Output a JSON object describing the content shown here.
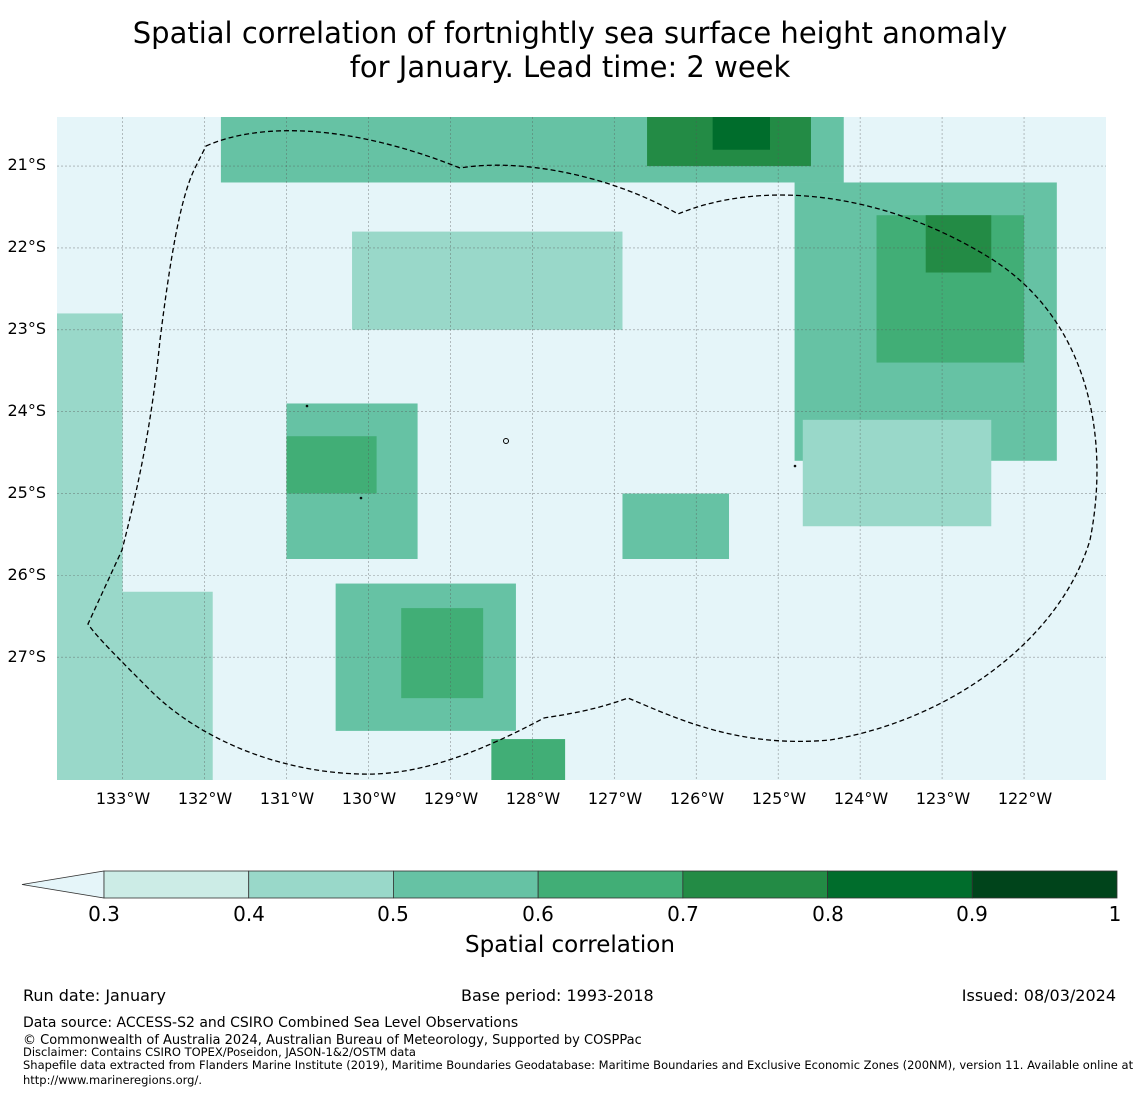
{
  "title_line1": "Spatial correlation of fortnightly sea surface height anomaly",
  "title_line2": "for January. Lead time: 2 week",
  "chart_data": {
    "type": "heatmap",
    "grid": "correlation values on a ~0.25 degree lon/lat grid",
    "lon_range": [
      -133.8,
      -121.0
    ],
    "lat_range": [
      -28.5,
      -20.4
    ],
    "lat_ticks": [
      "21°S",
      "22°S",
      "23°S",
      "24°S",
      "25°S",
      "26°S",
      "27°S"
    ],
    "lat_tick_values": [
      -21,
      -22,
      -23,
      -24,
      -25,
      -26,
      -27
    ],
    "lon_ticks": [
      "133°W",
      "132°W",
      "131°W",
      "130°W",
      "129°W",
      "128°W",
      "127°W",
      "126°W",
      "125°W",
      "124°W",
      "123°W",
      "122°W"
    ],
    "lon_tick_values": [
      -133,
      -132,
      -131,
      -130,
      -129,
      -128,
      -127,
      -126,
      -125,
      -124,
      -123,
      -122
    ],
    "regions": [
      {
        "name": "background",
        "value": 0.25
      },
      {
        "name": "west-edge",
        "value": 0.42,
        "lon": [
          -133.8,
          -133.0
        ],
        "lat": [
          -26.8,
          -22.8
        ]
      },
      {
        "name": "north-band",
        "value": 0.55,
        "lon": [
          -131.8,
          -124.2
        ],
        "lat": [
          -21.2,
          -20.4
        ]
      },
      {
        "name": "north-core",
        "value": 0.72,
        "lon": [
          -126.6,
          -124.6
        ],
        "lat": [
          -21.0,
          -20.4
        ]
      },
      {
        "name": "north-peak",
        "value": 0.84,
        "lon": [
          -125.8,
          -125.1
        ],
        "lat": [
          -20.8,
          -20.4
        ]
      },
      {
        "name": "east-block",
        "value": 0.55,
        "lon": [
          -124.8,
          -121.6
        ],
        "lat": [
          -24.6,
          -21.2
        ]
      },
      {
        "name": "east-core",
        "value": 0.66,
        "lon": [
          -123.8,
          -122.0
        ],
        "lat": [
          -23.4,
          -21.6
        ]
      },
      {
        "name": "east-peak",
        "value": 0.73,
        "lon": [
          -123.2,
          -122.4
        ],
        "lat": [
          -22.3,
          -21.6
        ]
      },
      {
        "name": "central-west",
        "value": 0.55,
        "lon": [
          -131.0,
          -129.4
        ],
        "lat": [
          -25.8,
          -23.9
        ]
      },
      {
        "name": "central-west-core",
        "value": 0.65,
        "lon": [
          -131.0,
          -129.9
        ],
        "lat": [
          -25.0,
          -24.3
        ]
      },
      {
        "name": "south-center",
        "value": 0.55,
        "lon": [
          -130.4,
          -128.2
        ],
        "lat": [
          -27.9,
          -26.1
        ]
      },
      {
        "name": "south-center-core",
        "value": 0.68,
        "lon": [
          -129.6,
          -128.6
        ],
        "lat": [
          -27.5,
          -26.4
        ]
      },
      {
        "name": "south-edge",
        "value": 0.62,
        "lon": [
          -128.5,
          -127.6
        ],
        "lat": [
          -28.5,
          -28.0
        ]
      },
      {
        "name": "mid-east",
        "value": 0.55,
        "lon": [
          -126.9,
          -125.6
        ],
        "lat": [
          -25.8,
          -25.0
        ]
      },
      {
        "name": "mid-north",
        "value": 0.55,
        "lon": [
          -129.8,
          -128.7
        ],
        "lat": [
          -22.8,
          -22.0
        ]
      },
      {
        "name": "mid-upper",
        "value": 0.45,
        "lon": [
          -130.2,
          -126.9
        ],
        "lat": [
          -23.0,
          -21.8
        ]
      },
      {
        "name": "lower-left",
        "value": 0.45,
        "lon": [
          -133.8,
          -131.9
        ],
        "lat": [
          -28.5,
          -26.2
        ]
      },
      {
        "name": "east-south",
        "value": 0.42,
        "lon": [
          -124.7,
          -122.4
        ],
        "lat": [
          -25.4,
          -24.1
        ]
      }
    ],
    "eez_outline": "dashed black boundary (Pitcairn Islands EEZ, 200NM)",
    "legend": {
      "boundaries": [
        0.3,
        0.4,
        0.5,
        0.6,
        0.7,
        0.8,
        0.9,
        1.0
      ],
      "tick_labels": [
        "0.3",
        "0.4",
        "0.5",
        "0.6",
        "0.7",
        "0.8",
        "0.9",
        "1"
      ],
      "colors": [
        "#ccece6",
        "#99d8c9",
        "#66c2a4",
        "#41ae76",
        "#238b45",
        "#006d2c",
        "#00441b"
      ],
      "under_color": "#e5f5f9",
      "extend": "min",
      "label": "Spatial correlation",
      "placement": "bottom, horizontal"
    }
  },
  "footer": {
    "run_date": "Run date: January",
    "base_period": "Base period: 1993-2018",
    "issued": "Issued: 08/03/2024",
    "data_source": "Data source: ACCESS-S2 and CSIRO Combined Sea Level Observations",
    "copyright": "© Commonwealth of Australia 2024, Australian Bureau of Meteorology, Supported by COSPPac",
    "disclaimer": "Disclaimer: Contains CSIRO TOPEX/Poseidon, JASON-1&2/OSTM data",
    "shapefile": "Shapefile data extracted from Flanders Marine Institute (2019), Maritime Boundaries Geodatabase: Maritime Boundaries and Exclusive Economic Zones (200NM), version 11. Available online at http://www.marineregions.org/."
  }
}
